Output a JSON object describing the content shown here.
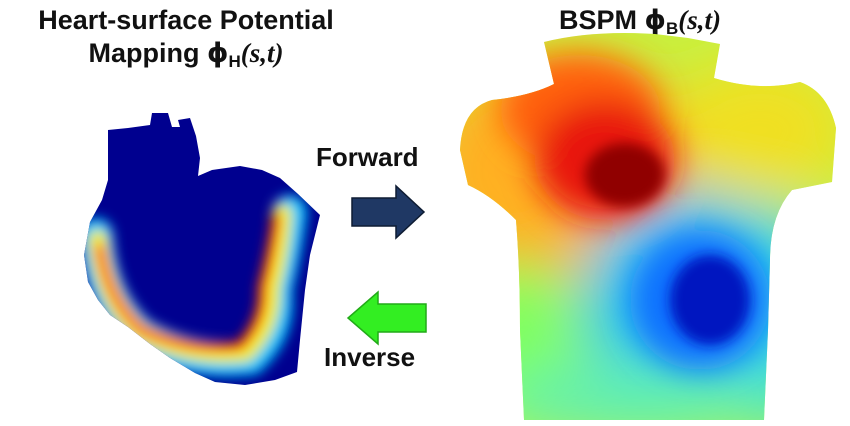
{
  "heart_title": {
    "line1": "Heart-surface Potential",
    "line2_prefix": "Mapping ",
    "phi": "ϕ",
    "subscript": "H",
    "args_open": "(",
    "args": "s,t",
    "args_close": ")"
  },
  "bspm_title": {
    "prefix": "BSPM ",
    "phi": "ϕ",
    "subscript": "B",
    "args_open": "(",
    "args": "s,t",
    "args_close": ")"
  },
  "forward": {
    "label": "Forward",
    "color": "#1f3864"
  },
  "inverse": {
    "label": "Inverse",
    "color": "#33ee22"
  },
  "colors": {
    "heart_base": "#00008f",
    "hot": "#cc0000",
    "cold": "#0022cc"
  }
}
